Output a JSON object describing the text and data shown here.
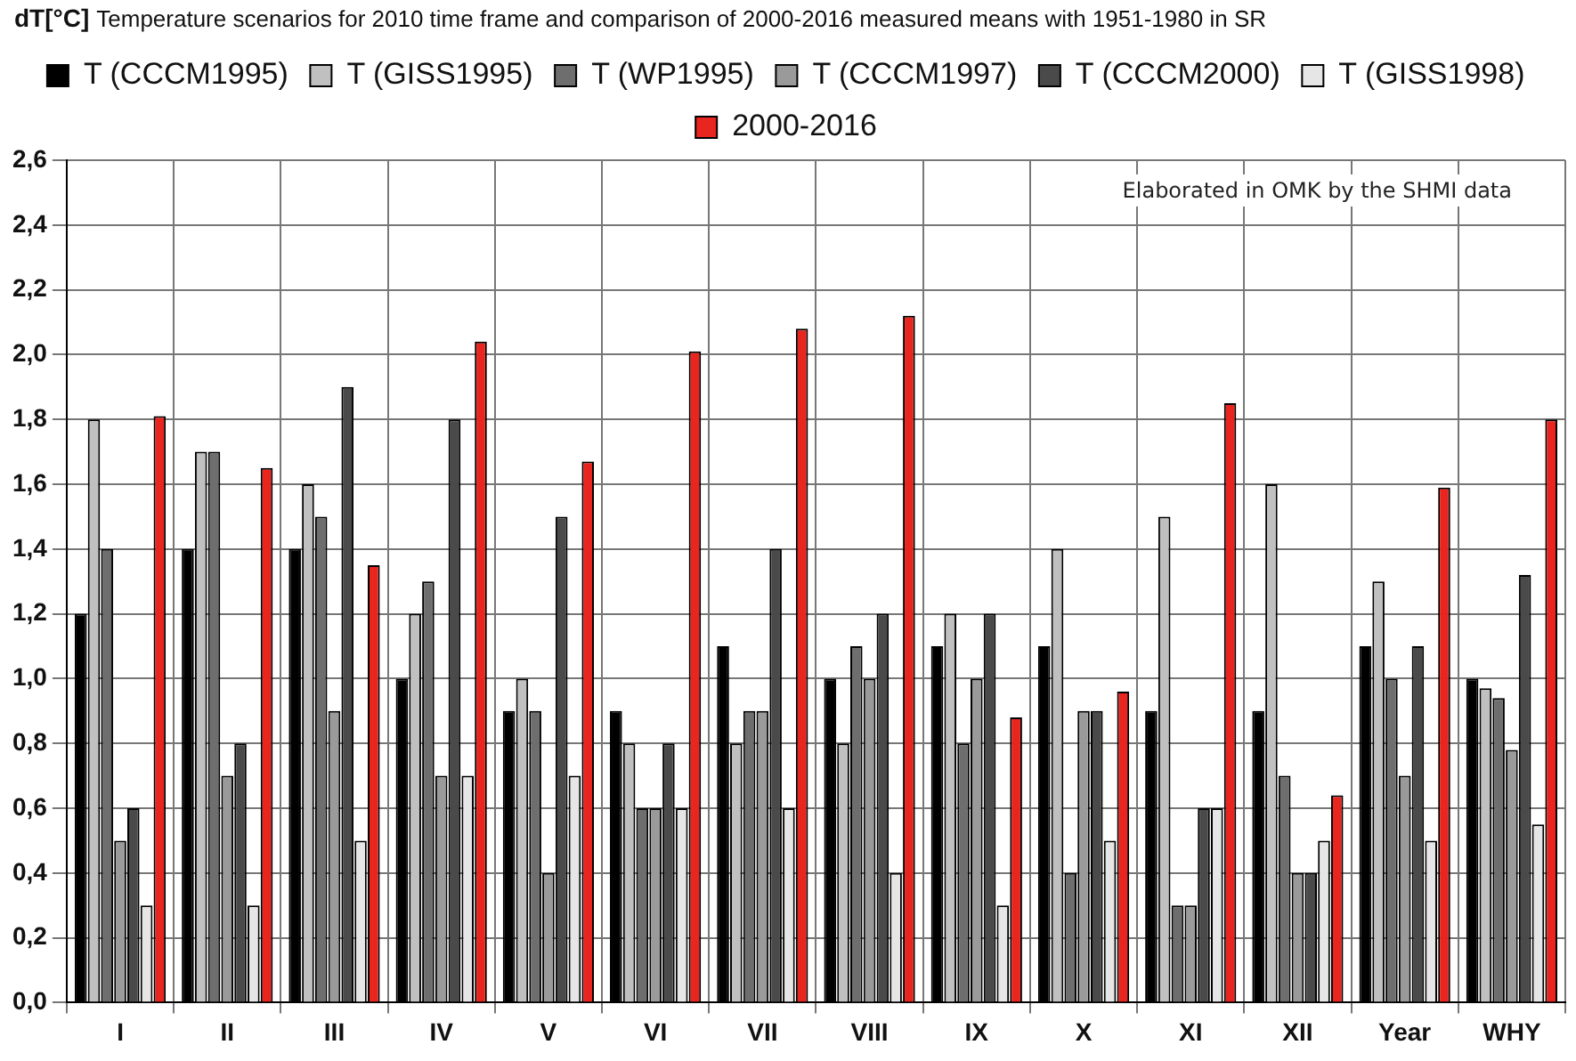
{
  "chart_data": {
    "type": "bar",
    "title": "Temperature scenarios for 2010 time frame and comparison of 2000-2016 measured means with 1951-1980 in SR",
    "ylabel": "dT[°C]",
    "annotations": [
      "Elaborated in OMK by the SHMI data"
    ],
    "categories": [
      "I",
      "II",
      "III",
      "IV",
      "V",
      "VI",
      "VII",
      "VIII",
      "IX",
      "X",
      "XI",
      "XII",
      "Year",
      "WHY"
    ],
    "series": [
      {
        "name": "T (CCCM1995)",
        "color": "#000000",
        "values": [
          1.2,
          1.4,
          1.4,
          1.0,
          0.9,
          0.9,
          1.1,
          1.0,
          1.1,
          1.1,
          0.9,
          0.9,
          1.1,
          1.0
        ]
      },
      {
        "name": "T (GISS1995)",
        "color": "#c0c0c0",
        "values": [
          1.8,
          1.7,
          1.6,
          1.2,
          1.0,
          0.8,
          0.8,
          0.8,
          1.2,
          1.4,
          1.5,
          1.6,
          1.3,
          0.97
        ]
      },
      {
        "name": "T (WP1995)",
        "color": "#6e6e6e",
        "values": [
          1.4,
          1.7,
          1.5,
          1.3,
          0.9,
          0.6,
          0.9,
          1.1,
          0.8,
          0.4,
          0.3,
          0.7,
          1.0,
          0.94
        ]
      },
      {
        "name": "T (CCCM1997)",
        "color": "#9a9a9a",
        "values": [
          0.5,
          0.7,
          0.9,
          0.7,
          0.4,
          0.6,
          0.9,
          1.0,
          1.0,
          0.9,
          0.3,
          0.4,
          0.7,
          0.78
        ]
      },
      {
        "name": "T (CCCM2000)",
        "color": "#4a4a4a",
        "values": [
          0.6,
          0.8,
          1.9,
          1.8,
          1.5,
          0.8,
          1.4,
          1.2,
          1.2,
          0.9,
          0.6,
          0.4,
          1.1,
          1.32
        ]
      },
      {
        "name": "T (GISS1998)",
        "color": "#e6e6e6",
        "values": [
          0.3,
          0.3,
          0.5,
          0.7,
          0.7,
          0.6,
          0.6,
          0.4,
          0.3,
          0.5,
          0.6,
          0.5,
          0.5,
          0.55
        ]
      },
      {
        "name": "2000-2016",
        "color": "#e8251f",
        "values": [
          1.81,
          1.65,
          1.35,
          2.04,
          1.67,
          2.01,
          2.08,
          2.12,
          0.88,
          0.96,
          1.85,
          0.64,
          1.59,
          1.8
        ]
      }
    ],
    "ylim": [
      0,
      2.6
    ],
    "yticks": [
      {
        "value": 0,
        "label": "0,0"
      },
      {
        "value": 0.2,
        "label": "0,2"
      },
      {
        "value": 0.4,
        "label": "0,4"
      },
      {
        "value": 0.6,
        "label": "0,6"
      },
      {
        "value": 0.8,
        "label": "0,8"
      },
      {
        "value": 1.0,
        "label": "1,0"
      },
      {
        "value": 1.2,
        "label": "1,2"
      },
      {
        "value": 1.4,
        "label": "1,4"
      },
      {
        "value": 1.6,
        "label": "1,6"
      },
      {
        "value": 1.8,
        "label": "1,8"
      },
      {
        "value": 2.0,
        "label": "2,0"
      },
      {
        "value": 2.2,
        "label": "2,2"
      },
      {
        "value": 2.4,
        "label": "2,4"
      },
      {
        "value": 2.6,
        "label": "2,6"
      }
    ],
    "grid": true,
    "legend": "top"
  }
}
